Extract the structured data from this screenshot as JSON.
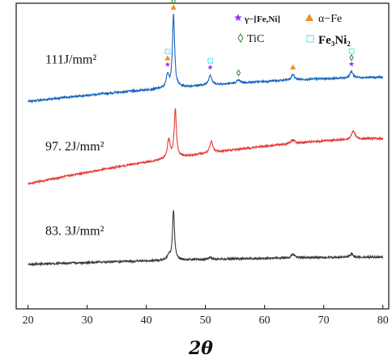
{
  "chart_data": {
    "type": "line",
    "title": "",
    "xlabel": "2θ",
    "ylabel": "",
    "xlim": [
      18,
      81
    ],
    "ylim": [
      0,
      330
    ],
    "xticks": [
      20,
      30,
      40,
      50,
      60,
      70,
      80
    ],
    "grid": false,
    "legend": {
      "placement": "top-right",
      "entries": [
        {
          "marker": "star",
          "color": "#9b30ff",
          "label": "γ−[Fe,Ni]"
        },
        {
          "marker": "triangle",
          "color": "#f28c1b",
          "label": "α−Fe"
        },
        {
          "marker": "diamond",
          "color": "#2e8b2e",
          "label": "TiC"
        },
        {
          "marker": "square",
          "color": "#40e0e8",
          "label": "Fe₃Ni₂"
        }
      ]
    },
    "series": [
      {
        "name": "111J/mm²",
        "color": "#1565c0",
        "baseline_start": 224,
        "baseline_end": 250,
        "peaks": [
          [
            43.6,
            14,
            0.25
          ],
          [
            44.6,
            78,
            0.22
          ],
          [
            50.8,
            11,
            0.3
          ],
          [
            55.6,
            3,
            0.3
          ],
          [
            64.8,
            6,
            0.3
          ],
          [
            74.7,
            7,
            0.3
          ]
        ]
      },
      {
        "name": "97. 2J/mm²",
        "color": "#e53935",
        "baseline_start": 135,
        "baseline_end": 184,
        "peaks": [
          [
            43.8,
            20,
            0.28
          ],
          [
            44.9,
            52,
            0.22
          ],
          [
            51.0,
            12,
            0.3
          ],
          [
            64.8,
            4,
            0.35
          ],
          [
            75.0,
            9,
            0.35
          ]
        ]
      },
      {
        "name": "83. 3J/mm²",
        "color": "#3a3a3a",
        "baseline_start": 48,
        "baseline_end": 56,
        "peaks": [
          [
            43.8,
            6,
            0.25
          ],
          [
            44.6,
            54,
            0.2
          ],
          [
            50.8,
            2,
            0.3
          ],
          [
            64.8,
            4,
            0.35
          ],
          [
            74.7,
            3,
            0.35
          ]
        ]
      }
    ],
    "peak_markers": [
      {
        "x": 43.6,
        "markers": [
          "star",
          "triangle",
          "square"
        ]
      },
      {
        "x": 44.6,
        "markers": [
          "triangle",
          "diamond"
        ]
      },
      {
        "x": 50.8,
        "markers": [
          "star",
          "square"
        ]
      },
      {
        "x": 55.6,
        "markers": [
          "diamond"
        ]
      },
      {
        "x": 64.8,
        "markers": [
          "triangle"
        ]
      },
      {
        "x": 74.7,
        "markers": [
          "star",
          "diamond",
          "square"
        ]
      }
    ]
  }
}
